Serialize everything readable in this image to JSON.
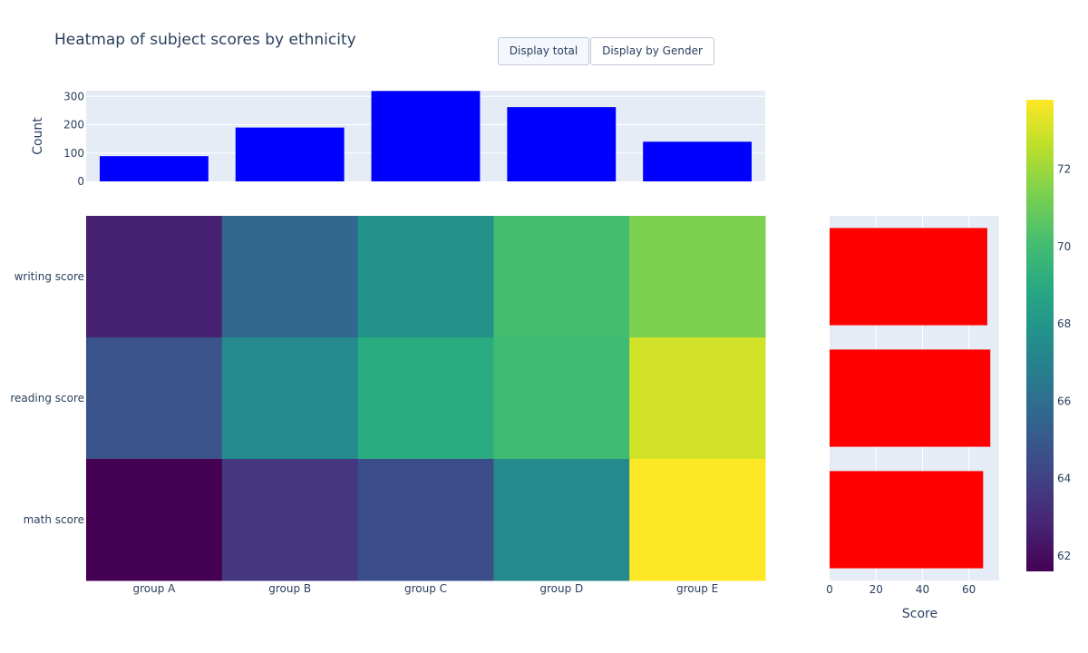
{
  "title": "Heatmap of subject scores by ethnicity",
  "buttons": [
    {
      "label": "Display total",
      "active": true
    },
    {
      "label": "Display by Gender",
      "active": false
    }
  ],
  "chart_data": [
    {
      "type": "bar",
      "categories": [
        "group A",
        "group B",
        "group C",
        "group D",
        "group E"
      ],
      "values": [
        89,
        190,
        319,
        262,
        140
      ],
      "ylabel": "Count",
      "ylim": [
        0,
        320
      ],
      "yticks": [
        0,
        100,
        200,
        300
      ],
      "color": "#0000ff",
      "grid": true
    },
    {
      "type": "heatmap",
      "x": [
        "group A",
        "group B",
        "group C",
        "group D",
        "group E"
      ],
      "y": [
        "writing score",
        "reading score",
        "math score"
      ],
      "z": [
        [
          62.7,
          65.6,
          67.8,
          70.1,
          71.4
        ],
        [
          64.7,
          67.4,
          69.1,
          70.0,
          73.0
        ],
        [
          61.6,
          63.5,
          64.5,
          67.4,
          73.8
        ]
      ],
      "zlim": [
        61.6,
        73.8
      ],
      "colorscale": "Viridis",
      "colorbar_ticks": [
        62,
        64,
        66,
        68,
        70,
        72
      ]
    },
    {
      "type": "bar",
      "orientation": "horizontal",
      "categories": [
        "writing score",
        "reading score",
        "math score"
      ],
      "values": [
        67.9,
        69.2,
        66.1
      ],
      "xlabel": "Score",
      "xlim": [
        0,
        73
      ],
      "xticks": [
        0,
        20,
        40,
        60
      ],
      "color": "#ff0000",
      "grid": true
    }
  ]
}
